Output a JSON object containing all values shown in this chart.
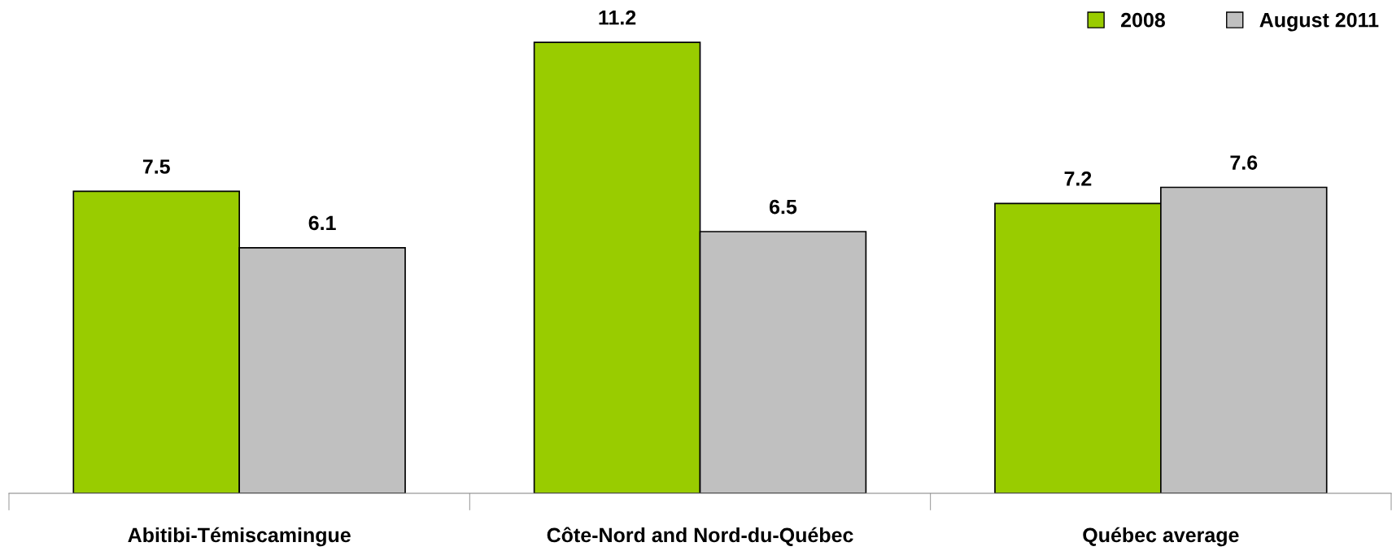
{
  "chart_data": {
    "type": "bar",
    "categories": [
      "Abitibi-Témiscamingue",
      "Côte-Nord and Nord-du-Québec",
      "Québec average"
    ],
    "series": [
      {
        "name": "2008",
        "color": "#99cc00",
        "values": [
          7.5,
          11.2,
          7.2
        ]
      },
      {
        "name": "August 2011",
        "color": "#c0c0c0",
        "values": [
          6.1,
          6.5,
          7.6
        ]
      }
    ],
    "data_labels": true,
    "legend": "top right",
    "grid": false
  }
}
